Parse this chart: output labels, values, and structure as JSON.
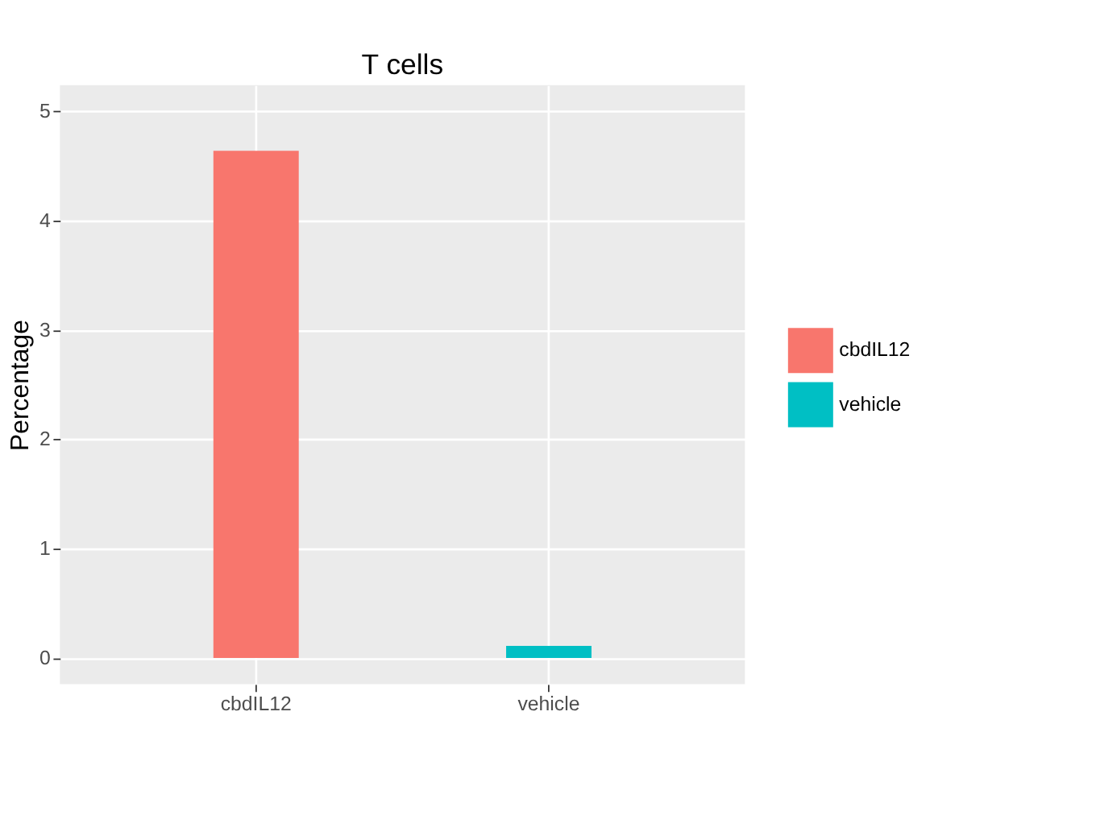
{
  "chart_data": {
    "type": "bar",
    "title": "T cells",
    "ylabel": "Percentage",
    "categories": [
      "cbdIL12",
      "vehicle"
    ],
    "series": [
      {
        "name": "cbdIL12",
        "color": "#f8766d",
        "values": [
          4.64,
          null
        ]
      },
      {
        "name": "vehicle",
        "color": "#00bfc4",
        "values": [
          null,
          0.11
        ]
      }
    ],
    "ylim": [
      -0.24,
      5.24
    ],
    "yticks": [
      0,
      1,
      2,
      3,
      4,
      5
    ],
    "grid": true,
    "legend": "right"
  }
}
